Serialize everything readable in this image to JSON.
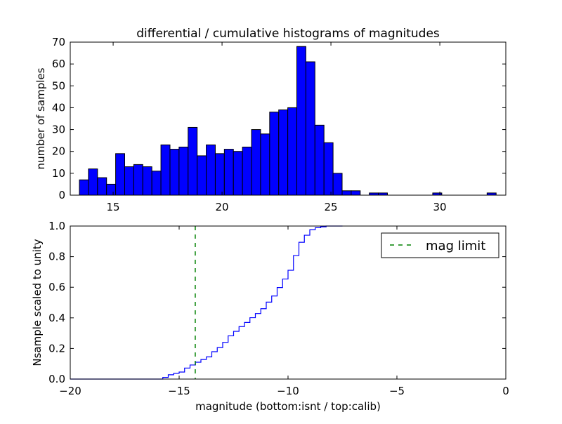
{
  "chart_data": [
    {
      "type": "bar",
      "title": "differential / cumulative histograms of magnitudes",
      "xlabel": "",
      "ylabel": "number of samples",
      "xlim": [
        13.03,
        33.03
      ],
      "ylim": [
        0,
        70
      ],
      "xticks": [
        "15",
        "20",
        "25",
        "30"
      ],
      "xtick_values": [
        15,
        20,
        25,
        30
      ],
      "yticks": [
        "0",
        "10",
        "20",
        "30",
        "40",
        "50",
        "60",
        "70"
      ],
      "ytick_values": [
        0,
        10,
        20,
        30,
        40,
        50,
        60,
        70
      ],
      "bin_start": 13.45,
      "bin_width": 0.416,
      "values": [
        7,
        12,
        8,
        5,
        19,
        13,
        14,
        13,
        11,
        23,
        21,
        22,
        31,
        18,
        23,
        19,
        21,
        20,
        22,
        30,
        28,
        38,
        39,
        40,
        68,
        61,
        32,
        24,
        10,
        2,
        2,
        0,
        1,
        1,
        0,
        0,
        0,
        0,
        0,
        1,
        0,
        0,
        0,
        0,
        0,
        1
      ],
      "color": "#0000ff"
    },
    {
      "type": "line",
      "xlabel": "magnitude (bottom:isnt / top:calib)",
      "ylabel": "Nsample scaled to unity",
      "xlim": [
        -20,
        0
      ],
      "ylim": [
        0,
        1
      ],
      "xticks": [
        "−20",
        "−15",
        "−10",
        "−5",
        "0"
      ],
      "xtick_values": [
        -20,
        -15,
        -10,
        -5,
        0
      ],
      "yticks": [
        "0.0",
        "0.2",
        "0.4",
        "0.6",
        "0.8",
        "1.0"
      ],
      "ytick_values": [
        0,
        0.2,
        0.4,
        0.6,
        0.8,
        1.0
      ],
      "step_start": -15.75,
      "step_width": 0.25,
      "step_end": -7.5,
      "values": [
        0.011,
        0.028,
        0.038,
        0.046,
        0.072,
        0.092,
        0.11,
        0.128,
        0.145,
        0.179,
        0.206,
        0.24,
        0.283,
        0.312,
        0.343,
        0.37,
        0.401,
        0.428,
        0.46,
        0.503,
        0.543,
        0.598,
        0.654,
        0.711,
        0.807,
        0.894,
        0.94,
        0.976,
        0.989,
        0.995,
        1.0
      ],
      "color": "#0000ff",
      "mag_limit": -14.26,
      "mag_limit_color": "#008000",
      "legend": {
        "label": "mag limit",
        "placement": "top-right"
      }
    }
  ]
}
